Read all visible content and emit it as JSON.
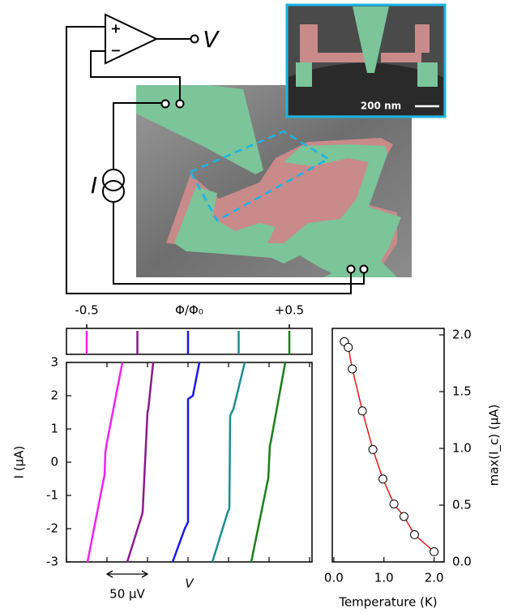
{
  "diagram": {
    "amp_plus": "+",
    "amp_minus": "−",
    "output": "V",
    "source": "I",
    "inset_scale_bar": "200 nm"
  },
  "chart_data": [
    {
      "type": "rug",
      "xlabel": "Φ/Φ₀",
      "xlim": [
        -0.6,
        0.612
      ],
      "xticks": [
        {
          "value": -0.5,
          "label": "-0.5"
        },
        {
          "value": 0.5,
          "label": "+0.5"
        }
      ],
      "values": [
        -0.5,
        -0.25,
        0,
        0.25,
        0.5
      ],
      "colors": [
        "#ee22ee",
        "#8b1a8b",
        "#1a1ae6",
        "#1a8f8f",
        "#1a7f1a"
      ]
    },
    {
      "type": "line",
      "xlabel": "V",
      "ylabel": "I (μA)",
      "xlim": [
        0,
        303
      ],
      "ylim": [
        -3,
        3
      ],
      "xticks": [
        0,
        50,
        100,
        150,
        200,
        250,
        300
      ],
      "yticks": [
        -3,
        -2,
        -1,
        0,
        1,
        2,
        3
      ],
      "scalebar": 50,
      "scalebar_label": "50 μV",
      "series": [
        {
          "color": "#ee22ee",
          "x": [
            26,
            46,
            47,
            48,
            50,
            69
          ],
          "values": [
            -3,
            -0.5,
            -0.4,
            0.3,
            0.6,
            3
          ]
        },
        {
          "color": "#8b1a8b",
          "x": [
            75,
            93,
            94,
            100,
            101,
            107
          ],
          "values": [
            -3,
            -1.6,
            -1.5,
            1.5,
            1.6,
            3
          ]
        },
        {
          "color": "#1a1ae6",
          "x": [
            131,
            146,
            150,
            150,
            156,
            164
          ],
          "values": [
            -3,
            -2,
            -1.8,
            1.9,
            2,
            3
          ]
        },
        {
          "color": "#1a8f8f",
          "x": [
            180,
            199,
            201,
            202,
            206,
            220
          ],
          "values": [
            -3,
            -1.5,
            -1.4,
            1.4,
            1.6,
            3
          ]
        },
        {
          "color": "#1a7f1a",
          "x": [
            228,
            248,
            249,
            251,
            252,
            270
          ],
          "values": [
            -3,
            -0.6,
            -0.5,
            0.5,
            0.6,
            3
          ]
        }
      ]
    },
    {
      "type": "line",
      "markers": true,
      "color": "#e01a1a",
      "xlabel": "Temperature (K)",
      "ylabel": "max(I_c) (μA)",
      "xlim": [
        -0.03,
        2.2
      ],
      "ylim": [
        0,
        2.057
      ],
      "xticks": [
        {
          "value": 0,
          "label": "0.0"
        },
        {
          "value": 1,
          "label": "1.0"
        },
        {
          "value": 2,
          "label": "2.0"
        }
      ],
      "yticks": [
        {
          "value": 0,
          "label": "0.0"
        },
        {
          "value": 0.5,
          "label": "0.5"
        },
        {
          "value": 1,
          "label": "1.0"
        },
        {
          "value": 1.5,
          "label": "1.5"
        },
        {
          "value": 2,
          "label": "2.0"
        }
      ],
      "x": [
        0.21,
        0.29,
        0.37,
        0.57,
        0.78,
        0.98,
        1.2,
        1.4,
        1.61,
        2.0
      ],
      "values": [
        1.94,
        1.89,
        1.7,
        1.33,
        0.99,
        0.73,
        0.51,
        0.4,
        0.24,
        0.09
      ]
    }
  ]
}
